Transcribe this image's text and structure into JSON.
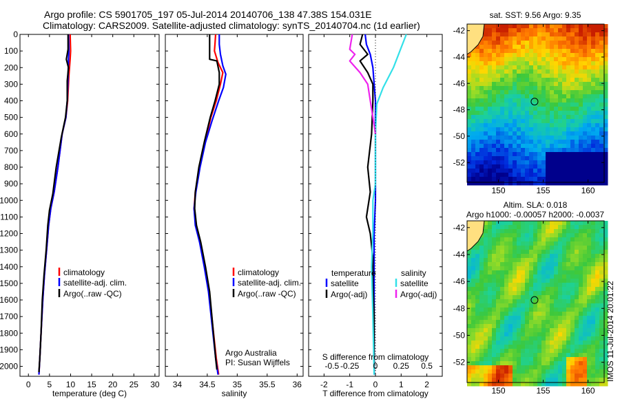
{
  "header": {
    "line1": "Argo profile: CS 5901705_197 05-Jul-2014 20140706_138 47.38S 154.031E",
    "line2": "Climatology: CARS2009. Satellite-adjusted climatology: synTS_20140704.nc (1d earlier)"
  },
  "colors": {
    "climatology": "#ff0000",
    "satellite": "#0000ff",
    "argo": "#000000",
    "salinity_sat": "#33e0e8",
    "salinity_argo": "#ee22ee"
  },
  "chart_data": [
    {
      "type": "line",
      "id": "temperature",
      "xlabel": "temperature (deg C)",
      "xlim": [
        -2,
        31
      ],
      "ylim": [
        2060,
        0
      ],
      "xticks": [
        0,
        5,
        10,
        15,
        20,
        25,
        30
      ],
      "yticks": [
        0,
        100,
        200,
        300,
        400,
        500,
        600,
        700,
        800,
        900,
        1000,
        1100,
        1200,
        1300,
        1400,
        1500,
        1600,
        1700,
        1800,
        1900,
        2000
      ],
      "legend": [
        "climatology",
        "satellite-adj. clim.",
        "Argo(..raw -QC)"
      ],
      "series": [
        {
          "name": "climatology",
          "color_key": "climatology",
          "points": [
            [
              9.9,
              0
            ],
            [
              10,
              100
            ],
            [
              9.9,
              150
            ],
            [
              9.6,
              250
            ],
            [
              9.3,
              400
            ],
            [
              8.9,
              500
            ],
            [
              8,
              600
            ],
            [
              7,
              800
            ],
            [
              6.1,
              950
            ],
            [
              5.3,
              1050
            ],
            [
              4.8,
              1150
            ],
            [
              4.3,
              1300
            ],
            [
              3.8,
              1450
            ],
            [
              3.4,
              1600
            ],
            [
              3.0,
              1800
            ],
            [
              2.7,
              1950
            ],
            [
              2.5,
              2050
            ]
          ]
        },
        {
          "name": "satellite-adj. clim.",
          "color_key": "satellite",
          "points": [
            [
              9.5,
              0
            ],
            [
              9.6,
              100
            ],
            [
              9.5,
              150
            ],
            [
              9.4,
              250
            ],
            [
              9.2,
              400
            ],
            [
              8.9,
              500
            ],
            [
              8,
              600
            ],
            [
              7,
              800
            ],
            [
              6.1,
              950
            ],
            [
              5.3,
              1050
            ],
            [
              4.8,
              1150
            ],
            [
              4.3,
              1300
            ],
            [
              3.8,
              1450
            ],
            [
              3.4,
              1600
            ],
            [
              3.0,
              1800
            ],
            [
              2.7,
              1950
            ],
            [
              2.5,
              2050
            ]
          ]
        },
        {
          "name": "Argo(..raw -QC)",
          "color_key": "argo",
          "points": [
            [
              9.4,
              0
            ],
            [
              9.4,
              90
            ],
            [
              9.0,
              150
            ],
            [
              9.5,
              200
            ],
            [
              9.2,
              280
            ],
            [
              9.2,
              400
            ],
            [
              8.8,
              500
            ],
            [
              7.8,
              620
            ],
            [
              6.6,
              800
            ],
            [
              5.8,
              960
            ],
            [
              5.0,
              1060
            ],
            [
              4.6,
              1150
            ],
            [
              4.2,
              1300
            ],
            [
              3.7,
              1450
            ],
            [
              3.3,
              1600
            ],
            [
              3.0,
              1800
            ],
            [
              2.7,
              1950
            ],
            [
              2.5,
              2035
            ]
          ]
        }
      ]
    },
    {
      "type": "line",
      "id": "salinity",
      "xlabel": "salinity",
      "xlim": [
        33.8,
        36.1
      ],
      "ylim": [
        2060,
        0
      ],
      "xticks": [
        34,
        34.5,
        35,
        35.5,
        36
      ],
      "legend": [
        "climatology",
        "satellite-adj. clim.",
        "Argo(..raw -QC)"
      ],
      "notes": [
        "Argo Australia",
        "PI: Susan Wijffels"
      ],
      "series": [
        {
          "name": "climatology",
          "color_key": "climatology",
          "points": [
            [
              34.64,
              0
            ],
            [
              34.63,
              50
            ],
            [
              34.62,
              100
            ],
            [
              34.68,
              170
            ],
            [
              34.76,
              230
            ],
            [
              34.72,
              300
            ],
            [
              34.65,
              400
            ],
            [
              34.56,
              500
            ],
            [
              34.46,
              650
            ],
            [
              34.37,
              800
            ],
            [
              34.3,
              950
            ],
            [
              34.28,
              1050
            ],
            [
              34.31,
              1150
            ],
            [
              34.38,
              1250
            ],
            [
              34.46,
              1400
            ],
            [
              34.53,
              1550
            ],
            [
              34.59,
              1750
            ],
            [
              34.65,
              1950
            ],
            [
              34.69,
              2050
            ]
          ]
        },
        {
          "name": "satellite-adj. clim.",
          "color_key": "satellite",
          "points": [
            [
              34.7,
              0
            ],
            [
              34.7,
              60
            ],
            [
              34.72,
              120
            ],
            [
              34.76,
              190
            ],
            [
              34.81,
              240
            ],
            [
              34.77,
              320
            ],
            [
              34.69,
              400
            ],
            [
              34.58,
              520
            ],
            [
              34.47,
              650
            ],
            [
              34.38,
              800
            ],
            [
              34.31,
              950
            ],
            [
              34.28,
              1050
            ],
            [
              34.3,
              1150
            ],
            [
              34.37,
              1250
            ],
            [
              34.45,
              1400
            ],
            [
              34.52,
              1550
            ],
            [
              34.58,
              1750
            ],
            [
              34.64,
              1950
            ],
            [
              34.68,
              2050
            ]
          ]
        },
        {
          "name": "Argo(..raw -QC)",
          "color_key": "argo",
          "points": [
            [
              34.54,
              0
            ],
            [
              34.54,
              150
            ],
            [
              34.66,
              160
            ],
            [
              34.7,
              230
            ],
            [
              34.7,
              300
            ],
            [
              34.63,
              400
            ],
            [
              34.55,
              500
            ],
            [
              34.45,
              650
            ],
            [
              34.36,
              800
            ],
            [
              34.3,
              950
            ],
            [
              34.29,
              1050
            ],
            [
              34.32,
              1150
            ],
            [
              34.39,
              1250
            ],
            [
              34.47,
              1400
            ],
            [
              34.54,
              1550
            ],
            [
              34.59,
              1750
            ],
            [
              34.64,
              1950
            ],
            [
              34.66,
              2020
            ]
          ]
        }
      ]
    },
    {
      "type": "line",
      "id": "difference",
      "xlabel_bottom": "T difference from climatology",
      "xlabel_top": "S difference from climatology",
      "xlim": [
        -2.6,
        2.6
      ],
      "ylim": [
        2060,
        0
      ],
      "xticks_bottom": [
        -2,
        -1,
        0,
        1,
        2
      ],
      "xticks_top": [
        "-0.5",
        "-0.25",
        "0",
        "0.25",
        "0.5"
      ],
      "legend_temperature": {
        "title": "temperature",
        "items": [
          "satellite",
          "Argo(-adj)"
        ]
      },
      "legend_salinity": {
        "title": "salinity",
        "items": [
          "satellite",
          "Argo(-adj)"
        ]
      },
      "series": [
        {
          "name": "temperature satellite",
          "color_key": "satellite",
          "points": [
            [
              -0.4,
              0
            ],
            [
              -0.35,
              60
            ],
            [
              -0.2,
              120
            ],
            [
              -0.1,
              200
            ],
            [
              -0.05,
              300
            ],
            [
              0,
              400
            ],
            [
              0,
              600
            ],
            [
              0,
              800
            ],
            [
              0,
              1000
            ],
            [
              -0.05,
              1200
            ],
            [
              -0.05,
              1500
            ],
            [
              -0.05,
              1800
            ],
            [
              -0.05,
              2050
            ]
          ]
        },
        {
          "name": "temperature Argo(-adj)",
          "color_key": "argo",
          "points": [
            [
              -0.5,
              0
            ],
            [
              -0.6,
              60
            ],
            [
              -0.3,
              120
            ],
            [
              -0.6,
              160
            ],
            [
              -0.3,
              230
            ],
            [
              -0.1,
              300
            ],
            [
              -0.1,
              400
            ],
            [
              -0.15,
              600
            ],
            [
              -0.3,
              800
            ],
            [
              -0.2,
              950
            ],
            [
              -0.35,
              1100
            ],
            [
              -0.2,
              1200
            ],
            [
              -0.1,
              1350
            ],
            [
              -0.1,
              1500
            ],
            [
              -0.05,
              1700
            ],
            [
              -0.05,
              2040
            ]
          ]
        },
        {
          "name": "salinity satellite",
          "color_key": "salinity_sat",
          "points": [
            [
              1.2,
              0
            ],
            [
              1.0,
              80
            ],
            [
              0.7,
              200
            ],
            [
              0.3,
              320
            ],
            [
              0.05,
              420
            ],
            [
              0,
              600
            ],
            [
              0,
              800
            ],
            [
              0,
              900
            ],
            [
              -0.1,
              1000
            ],
            [
              -0.1,
              1200
            ],
            [
              -0.15,
              1400
            ],
            [
              -0.1,
              1700
            ],
            [
              -0.05,
              2050
            ]
          ]
        },
        {
          "name": "salinity Argo(-adj)",
          "color_key": "salinity_argo",
          "points": [
            [
              -0.9,
              0
            ],
            [
              -1.0,
              90
            ],
            [
              -0.8,
              120
            ],
            [
              -1.0,
              160
            ],
            [
              -0.6,
              230
            ],
            [
              -0.3,
              300
            ],
            [
              -0.2,
              400
            ],
            [
              -0.1,
              500
            ],
            [
              0,
              600
            ]
          ]
        }
      ]
    }
  ],
  "maps": [
    {
      "id": "sst",
      "title": "sat. SST: 9.56 Argo: 9.35",
      "xticks": [
        150,
        155,
        160
      ],
      "yticks": [
        -42,
        -44,
        -46,
        -48,
        -50,
        -52
      ],
      "xlim": [
        146.5,
        161.8
      ],
      "ylim": [
        -53.5,
        -41.5
      ],
      "marker": [
        154.03,
        -47.38
      ]
    },
    {
      "id": "sla",
      "title_line1": "Altim. SLA: 0.018",
      "title_line2": "Argo h1000: -0.00057 h2000: -0.0037",
      "xticks": [
        150,
        155,
        160
      ],
      "yticks": [
        -42,
        -44,
        -46,
        -48,
        -50,
        -52
      ],
      "xlim": [
        146.5,
        161.8
      ],
      "ylim": [
        -53.5,
        -41.5
      ],
      "marker": [
        154.03,
        -47.38
      ]
    }
  ],
  "footer": {
    "credit": "IMOS 11-Jul-2014 20:01:22"
  }
}
